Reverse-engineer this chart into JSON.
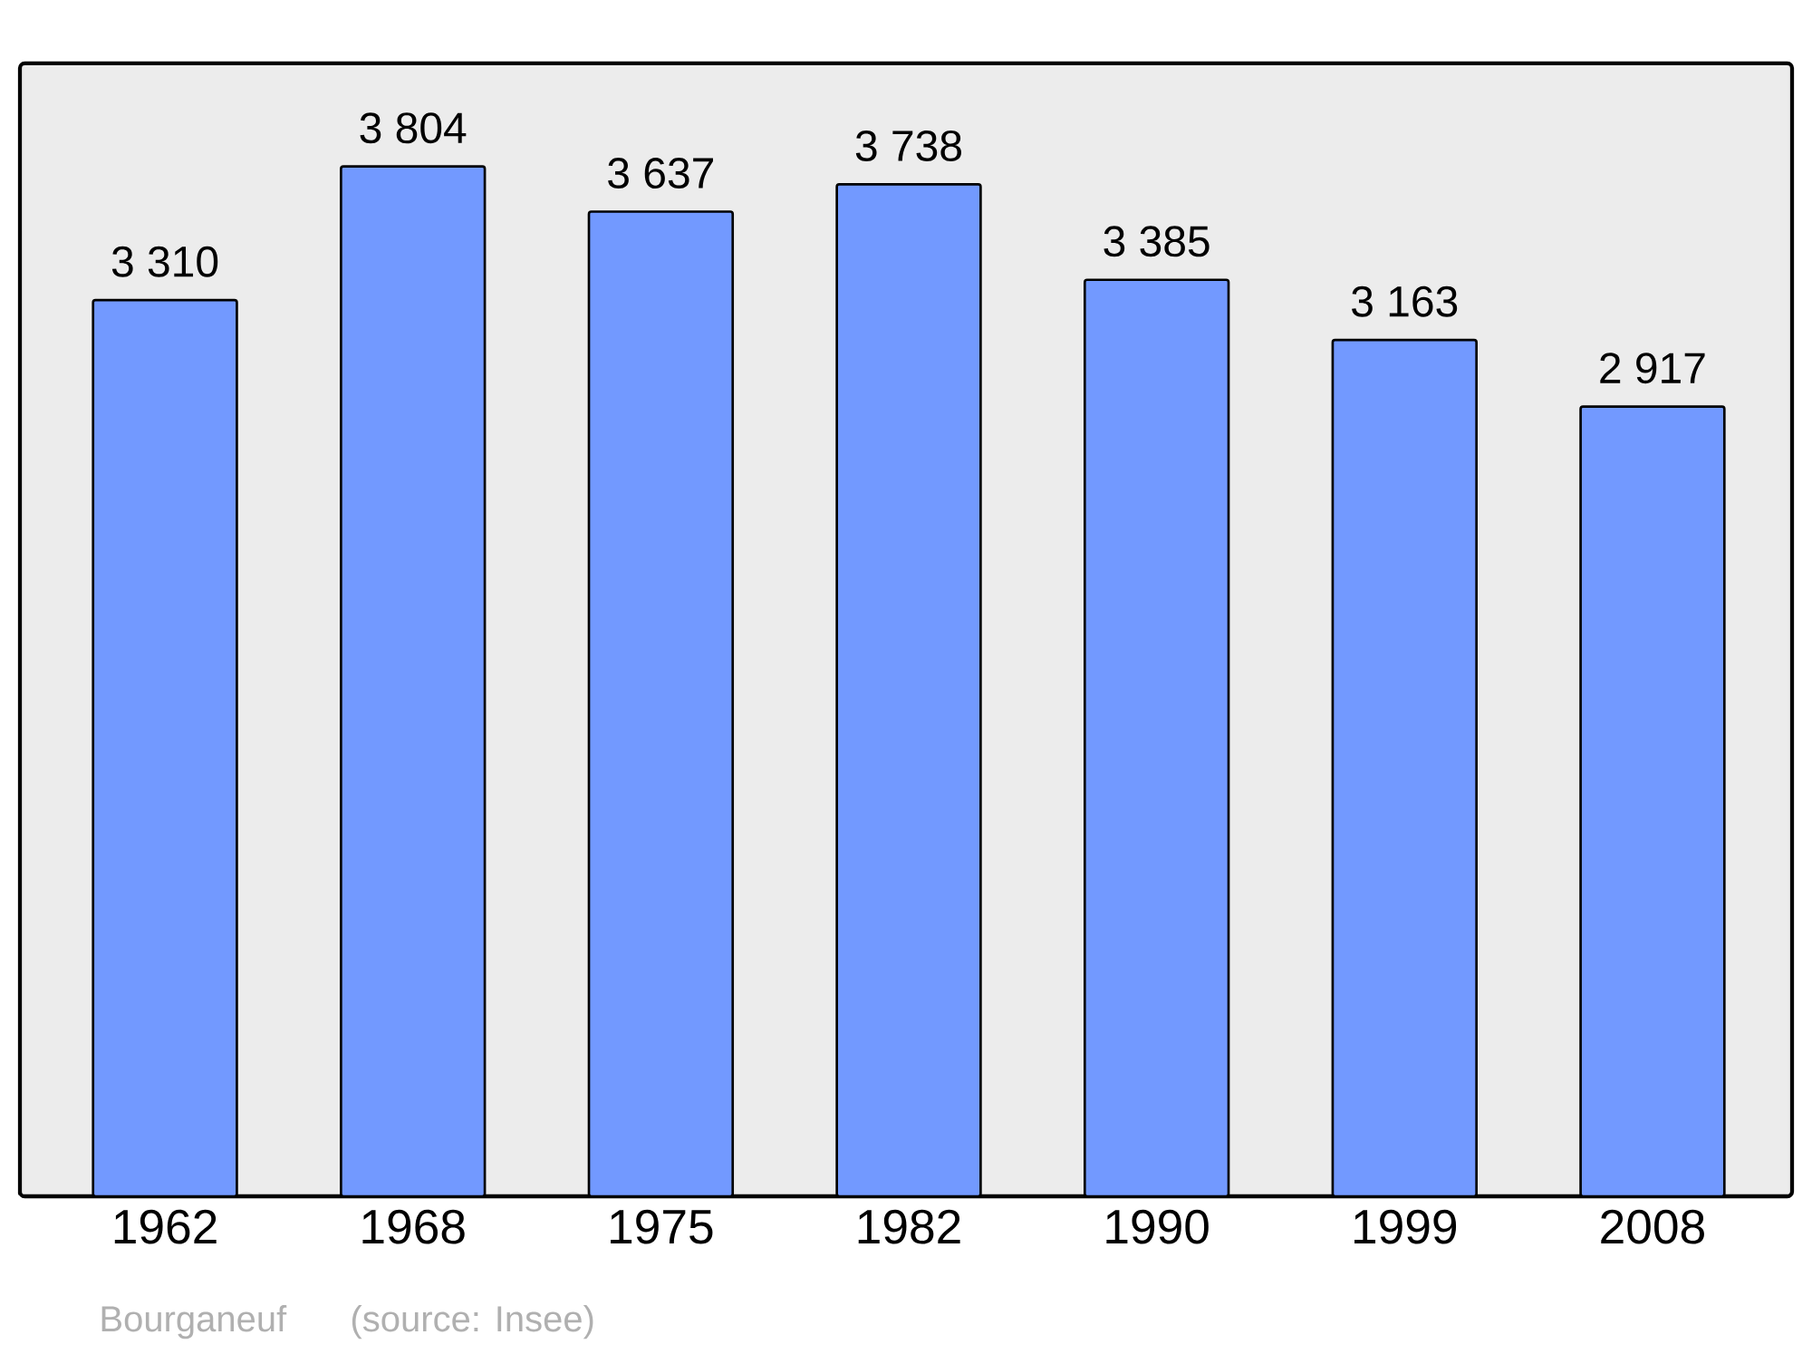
{
  "chart_data": {
    "type": "bar",
    "categories": [
      "1962",
      "1968",
      "1975",
      "1982",
      "1990",
      "1999",
      "2008"
    ],
    "values": [
      3310,
      3804,
      3637,
      3738,
      3385,
      3163,
      2917
    ],
    "value_labels": [
      "3 310",
      "3 804",
      "3 637",
      "3 738",
      "3 385",
      "3 163",
      "2 917"
    ],
    "color": "#7299ff",
    "annotations": [
      "Bourganeuf",
      "(source: Insee)"
    ]
  }
}
